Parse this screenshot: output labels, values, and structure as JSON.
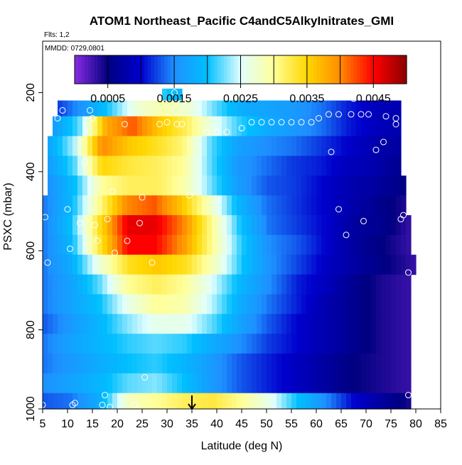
{
  "chart_data": {
    "type": "heatmap",
    "title": "ATOM1 Northeast_Pacific C4andC5AlkyInitrates_GMI",
    "subtitle": "Flts: 1,2",
    "annotation": "MMDD: 0729,0801",
    "xlabel": "Latitude (deg N)",
    "ylabel": "PSXC (mbar)",
    "xlim": [
      5,
      85
    ],
    "ylim": [
      1000,
      70
    ],
    "y_reversed": true,
    "x_ticks": [
      5,
      10,
      15,
      20,
      25,
      30,
      35,
      40,
      45,
      50,
      55,
      60,
      65,
      70,
      75,
      80,
      85
    ],
    "y_ticks": [
      200,
      400,
      600,
      800,
      1000
    ],
    "grid": false,
    "colorbar": {
      "placement": "top",
      "min": 0.0,
      "max": 0.005,
      "ticks": [
        0.0005,
        0.0015,
        0.0025,
        0.0035,
        0.0045
      ],
      "tick_labels": [
        "0.0005",
        "0.0015",
        "0.0025",
        "0.0035",
        "0.0045"
      ]
    },
    "colors": {
      "scale": [
        "#8a2be2",
        "#000080",
        "#0000cd",
        "#1e90ff",
        "#00bfff",
        "#e0ffff",
        "#ffff99",
        "#ffd700",
        "#ff8c00",
        "#ff0000",
        "#8b0000"
      ],
      "marker_stroke": "#ffffff",
      "arrow": "#000000"
    },
    "marker_x": 35,
    "layers": [
      {
        "p": [
          190,
          220
        ],
        "lat": [
          29,
          33
        ],
        "values": [
          0.0021,
          0.0019
        ]
      },
      {
        "p": [
          220,
          260
        ],
        "lat": [
          8,
          77
        ],
        "values": [
          0.0012,
          0.0016,
          0.0021,
          0.0027,
          0.0029,
          0.0027,
          0.0022,
          0.0018,
          0.0017,
          0.0016,
          0.0014,
          0.0011,
          0.0009,
          0.0008
        ]
      },
      {
        "p": [
          260,
          310
        ],
        "lat": [
          7,
          77
        ],
        "values": [
          0.0016,
          0.0022,
          0.0038,
          0.0042,
          0.0036,
          0.0032,
          0.0026,
          0.0021,
          0.0018,
          0.0016,
          0.0014,
          0.0011,
          0.0009,
          0.0008
        ]
      },
      {
        "p": [
          310,
          360
        ],
        "lat": [
          6,
          77
        ],
        "values": [
          0.0017,
          0.0024,
          0.004,
          0.0036,
          0.0034,
          0.0031,
          0.0022,
          0.0017,
          0.0015,
          0.0014,
          0.0012,
          0.001,
          0.0008,
          0.0007
        ]
      },
      {
        "p": [
          360,
          410
        ],
        "lat": [
          6,
          77
        ],
        "values": [
          0.0016,
          0.0022,
          0.0035,
          0.0033,
          0.0032,
          0.003,
          0.0022,
          0.0016,
          0.0014,
          0.0012,
          0.0011,
          0.0009,
          0.0008,
          0.0006
        ]
      },
      {
        "p": [
          410,
          460
        ],
        "lat": [
          6,
          78
        ],
        "values": [
          0.0015,
          0.002,
          0.003,
          0.0032,
          0.0032,
          0.0029,
          0.0022,
          0.0016,
          0.0013,
          0.0012,
          0.001,
          0.0008,
          0.0007,
          0.0005
        ]
      },
      {
        "p": [
          460,
          510
        ],
        "lat": [
          5,
          78
        ],
        "values": [
          0.0014,
          0.0019,
          0.003,
          0.004,
          0.0042,
          0.0036,
          0.0028,
          0.0019,
          0.0014,
          0.0012,
          0.001,
          0.0008,
          0.0006,
          0.0004
        ]
      },
      {
        "p": [
          510,
          560
        ],
        "lat": [
          5,
          79
        ],
        "values": [
          0.0014,
          0.002,
          0.0034,
          0.0046,
          0.0046,
          0.004,
          0.003,
          0.002,
          0.0014,
          0.0012,
          0.001,
          0.0007,
          0.0006,
          0.0003
        ]
      },
      {
        "p": [
          560,
          610
        ],
        "lat": [
          5,
          79
        ],
        "values": [
          0.0014,
          0.0019,
          0.0033,
          0.0045,
          0.0045,
          0.0039,
          0.003,
          0.0021,
          0.0015,
          0.0013,
          0.001,
          0.0007,
          0.0005,
          0.0003
        ]
      },
      {
        "p": [
          610,
          660
        ],
        "lat": [
          5,
          80
        ],
        "values": [
          0.0014,
          0.0018,
          0.0027,
          0.0034,
          0.0036,
          0.0034,
          0.0028,
          0.002,
          0.0015,
          0.0012,
          0.0009,
          0.0007,
          0.0005,
          0.0003
        ]
      },
      {
        "p": [
          660,
          710
        ],
        "lat": [
          5,
          79
        ],
        "values": [
          0.0014,
          0.0017,
          0.0022,
          0.003,
          0.0032,
          0.003,
          0.0025,
          0.0019,
          0.0015,
          0.0011,
          0.0009,
          0.0006,
          0.0004,
          0.0003
        ]
      },
      {
        "p": [
          710,
          760
        ],
        "lat": [
          5,
          79
        ],
        "values": [
          0.0014,
          0.0017,
          0.002,
          0.0026,
          0.003,
          0.0029,
          0.0024,
          0.0018,
          0.0014,
          0.0011,
          0.0008,
          0.0006,
          0.0004,
          0.0003
        ]
      },
      {
        "p": [
          760,
          810
        ],
        "lat": [
          5,
          79
        ],
        "values": [
          0.0013,
          0.0016,
          0.0019,
          0.0023,
          0.0026,
          0.0026,
          0.0022,
          0.0017,
          0.0013,
          0.001,
          0.0008,
          0.0006,
          0.0004,
          0.0003
        ]
      },
      {
        "p": [
          810,
          860
        ],
        "lat": [
          5,
          79
        ],
        "values": [
          0.0014,
          0.0017,
          0.0019,
          0.0021,
          0.0022,
          0.0021,
          0.0018,
          0.0015,
          0.0012,
          0.001,
          0.0008,
          0.0006,
          0.0004,
          0.0003
        ]
      },
      {
        "p": [
          860,
          910
        ],
        "lat": [
          5,
          79
        ],
        "values": [
          0.0014,
          0.0016,
          0.0018,
          0.002,
          0.0021,
          0.0019,
          0.0016,
          0.0013,
          0.0011,
          0.0009,
          0.0007,
          0.0005,
          0.0004,
          0.0003
        ]
      },
      {
        "p": [
          910,
          960
        ],
        "lat": [
          5,
          79
        ],
        "values": [
          0.0015,
          0.0017,
          0.0019,
          0.0022,
          0.0023,
          0.002,
          0.0016,
          0.0013,
          0.0011,
          0.0009,
          0.0007,
          0.0005,
          0.0004,
          0.0003
        ]
      },
      {
        "p": [
          960,
          1000
        ],
        "lat": [
          5,
          79
        ],
        "values": [
          0.0013,
          0.0014,
          0.0018,
          0.0028,
          0.003,
          0.0032,
          0.0033,
          0.003,
          0.0026,
          0.002,
          0.0015,
          0.001,
          0.0007,
          0.0004
        ]
      }
    ],
    "observations": [
      {
        "lat": 5,
        "p": 990
      },
      {
        "lat": 5.5,
        "p": 515
      },
      {
        "lat": 6,
        "p": 630
      },
      {
        "lat": 8,
        "p": 265
      },
      {
        "lat": 9,
        "p": 245
      },
      {
        "lat": 10,
        "p": 495
      },
      {
        "lat": 10.5,
        "p": 595
      },
      {
        "lat": 11,
        "p": 990
      },
      {
        "lat": 11.5,
        "p": 985
      },
      {
        "lat": 12.5,
        "p": 530
      },
      {
        "lat": 13.5,
        "p": 375
      },
      {
        "lat": 14.5,
        "p": 245
      },
      {
        "lat": 15,
        "p": 265
      },
      {
        "lat": 15.5,
        "p": 535
      },
      {
        "lat": 16,
        "p": 575
      },
      {
        "lat": 17,
        "p": 990
      },
      {
        "lat": 17.5,
        "p": 965
      },
      {
        "lat": 18,
        "p": 520
      },
      {
        "lat": 18.5,
        "p": 995
      },
      {
        "lat": 19,
        "p": 450
      },
      {
        "lat": 19.5,
        "p": 605
      },
      {
        "lat": 21.5,
        "p": 280
      },
      {
        "lat": 22,
        "p": 575
      },
      {
        "lat": 23.5,
        "p": 990
      },
      {
        "lat": 24.5,
        "p": 530
      },
      {
        "lat": 25,
        "p": 465
      },
      {
        "lat": 25.5,
        "p": 920
      },
      {
        "lat": 27,
        "p": 630
      },
      {
        "lat": 28,
        "p": 200
      },
      {
        "lat": 28.5,
        "p": 280
      },
      {
        "lat": 30,
        "p": 275
      },
      {
        "lat": 31.5,
        "p": 200
      },
      {
        "lat": 32,
        "p": 280
      },
      {
        "lat": 33,
        "p": 280
      },
      {
        "lat": 34.5,
        "p": 460
      },
      {
        "lat": 38,
        "p": 300
      },
      {
        "lat": 40,
        "p": 300
      },
      {
        "lat": 42,
        "p": 300
      },
      {
        "lat": 45,
        "p": 290
      },
      {
        "lat": 47,
        "p": 275
      },
      {
        "lat": 49,
        "p": 275
      },
      {
        "lat": 51,
        "p": 275
      },
      {
        "lat": 53,
        "p": 275
      },
      {
        "lat": 55,
        "p": 275
      },
      {
        "lat": 57,
        "p": 275
      },
      {
        "lat": 59,
        "p": 275
      },
      {
        "lat": 60.5,
        "p": 265
      },
      {
        "lat": 62.5,
        "p": 255
      },
      {
        "lat": 63,
        "p": 350
      },
      {
        "lat": 64.5,
        "p": 255
      },
      {
        "lat": 64.5,
        "p": 495
      },
      {
        "lat": 66,
        "p": 560
      },
      {
        "lat": 67,
        "p": 255
      },
      {
        "lat": 67.5,
        "p": 215
      },
      {
        "lat": 69,
        "p": 255
      },
      {
        "lat": 69.5,
        "p": 525
      },
      {
        "lat": 70.5,
        "p": 255
      },
      {
        "lat": 72,
        "p": 345
      },
      {
        "lat": 73.5,
        "p": 325
      },
      {
        "lat": 74,
        "p": 260
      },
      {
        "lat": 76,
        "p": 265
      },
      {
        "lat": 76,
        "p": 280
      },
      {
        "lat": 77,
        "p": 520
      },
      {
        "lat": 77.5,
        "p": 510
      },
      {
        "lat": 78.5,
        "p": 655
      },
      {
        "lat": 78.5,
        "p": 965
      }
    ]
  }
}
